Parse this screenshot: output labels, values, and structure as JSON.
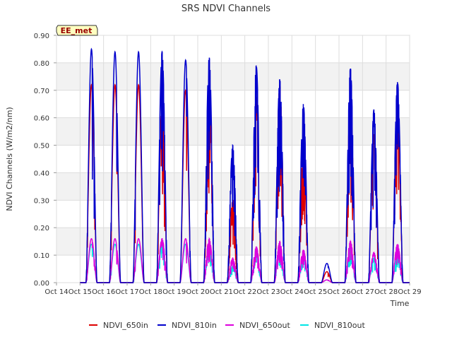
{
  "chart_data": {
    "type": "line",
    "title": "SRS NDVI Channels",
    "xlabel": "Time",
    "ylabel": "NDVI Channels (W/m2/nm)",
    "annotation": "EE_met",
    "ylim": [
      0,
      0.9
    ],
    "xlim": [
      0,
      15
    ],
    "x_ticks": [
      "Oct 14",
      "Oct 15",
      "Oct 16",
      "Oct 17",
      "Oct 18",
      "Oct 19",
      "Oct 20",
      "Oct 21",
      "Oct 22",
      "Oct 23",
      "Oct 24",
      "Oct 25",
      "Oct 26",
      "Oct 27",
      "Oct 28",
      "Oct 29"
    ],
    "y_ticks": [
      "0.00",
      "0.10",
      "0.20",
      "0.30",
      "0.40",
      "0.50",
      "0.60",
      "0.70",
      "0.80",
      "0.90"
    ],
    "grid": true,
    "legend_position": "bottom",
    "series": [
      {
        "name": "NDVI_650in",
        "color": "#dd0000",
        "peaks": [
          0.72,
          0.72,
          0.72,
          0.65,
          0.7,
          0.69,
          0.3,
          0.68,
          0.72,
          0.52,
          0.04,
          0.66,
          0.54,
          0.64
        ]
      },
      {
        "name": "NDVI_810in",
        "color": "#0000cc",
        "peaks": [
          0.85,
          0.84,
          0.84,
          0.84,
          0.81,
          0.82,
          0.5,
          0.79,
          0.74,
          0.65,
          0.07,
          0.78,
          0.63,
          0.73
        ]
      },
      {
        "name": "NDVI_650out",
        "color": "#dd00dd",
        "peaks": [
          0.16,
          0.16,
          0.16,
          0.16,
          0.16,
          0.16,
          0.09,
          0.13,
          0.15,
          0.12,
          0.01,
          0.15,
          0.11,
          0.14
        ]
      },
      {
        "name": "NDVI_810out",
        "color": "#00e5e5",
        "peaks": [
          0.14,
          0.14,
          0.14,
          0.14,
          0.14,
          0.14,
          0.06,
          0.12,
          0.12,
          0.1,
          0.01,
          0.13,
          0.09,
          0.1
        ]
      }
    ]
  }
}
